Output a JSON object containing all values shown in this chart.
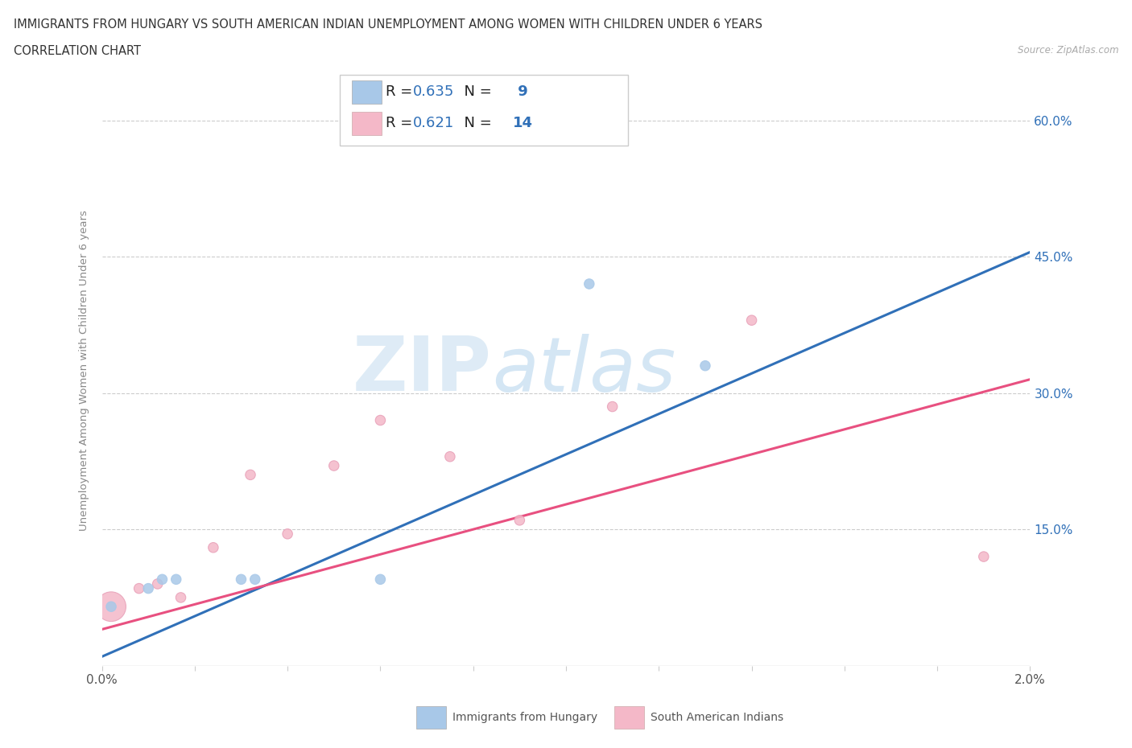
{
  "title_line1": "IMMIGRANTS FROM HUNGARY VS SOUTH AMERICAN INDIAN UNEMPLOYMENT AMONG WOMEN WITH CHILDREN UNDER 6 YEARS",
  "title_line2": "CORRELATION CHART",
  "source": "Source: ZipAtlas.com",
  "ylabel": "Unemployment Among Women with Children Under 6 years",
  "xlim": [
    0.0,
    0.02
  ],
  "ylim": [
    0.0,
    0.65
  ],
  "yticks": [
    0.0,
    0.15,
    0.3,
    0.45,
    0.6
  ],
  "xticks": [
    0.0,
    0.002,
    0.004,
    0.006,
    0.008,
    0.01,
    0.012,
    0.014,
    0.016,
    0.018,
    0.02
  ],
  "xtick_labels_show": {
    "0.0": "0.0%",
    "0.02": "2.0%"
  },
  "ytick_labels_right": [
    "",
    "15.0%",
    "30.0%",
    "45.0%",
    "60.0%"
  ],
  "blue_R": 0.635,
  "blue_N": 9,
  "pink_R": 0.621,
  "pink_N": 14,
  "blue_color": "#a8c8e8",
  "pink_color": "#f4b8c8",
  "blue_line_color": "#3070b8",
  "pink_line_color": "#e85080",
  "watermark_zip": "ZIP",
  "watermark_atlas": "atlas",
  "blue_x": [
    0.0002,
    0.001,
    0.0013,
    0.0016,
    0.003,
    0.0033,
    0.006,
    0.0105,
    0.013
  ],
  "blue_y": [
    0.065,
    0.085,
    0.095,
    0.095,
    0.095,
    0.095,
    0.095,
    0.42,
    0.33
  ],
  "pink_x": [
    0.0002,
    0.0008,
    0.0012,
    0.0017,
    0.0024,
    0.0032,
    0.004,
    0.005,
    0.006,
    0.0075,
    0.009,
    0.011,
    0.014,
    0.019
  ],
  "pink_y": [
    0.065,
    0.085,
    0.09,
    0.075,
    0.13,
    0.21,
    0.145,
    0.22,
    0.27,
    0.23,
    0.16,
    0.285,
    0.38,
    0.12
  ],
  "blue_dot_sizes": [
    80,
    80,
    80,
    80,
    80,
    80,
    80,
    80,
    80
  ],
  "pink_dot_sizes": [
    700,
    80,
    80,
    80,
    80,
    80,
    80,
    80,
    80,
    80,
    80,
    80,
    80,
    80
  ],
  "blue_line_x": [
    0.0,
    0.02
  ],
  "blue_line_y": [
    0.01,
    0.455
  ],
  "pink_line_x": [
    0.0,
    0.02
  ],
  "pink_line_y": [
    0.04,
    0.315
  ],
  "legend_R_color": "#3070b8",
  "legend_text_color": "#222222",
  "grid_color": "#cccccc",
  "axis_color": "#aaaaaa"
}
